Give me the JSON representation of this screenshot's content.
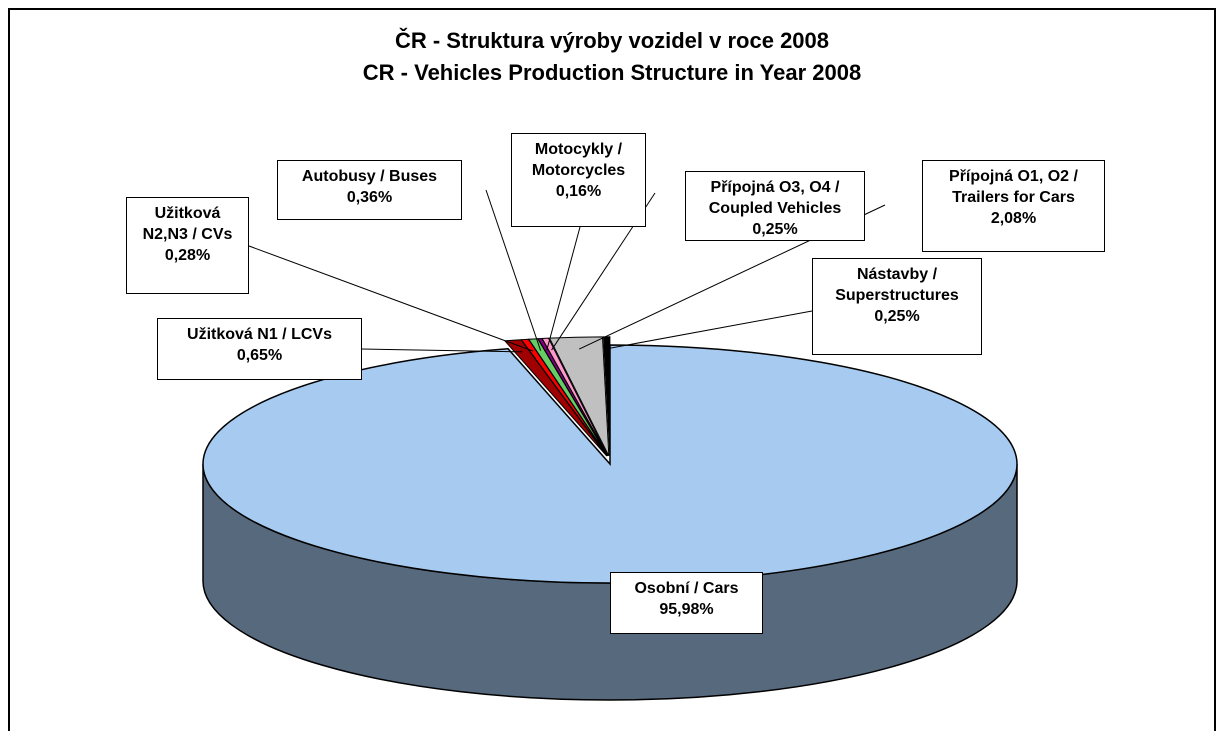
{
  "chart_data": {
    "type": "pie",
    "title": "ČR - Struktura výroby vozidel v roce 2008",
    "subtitle": "CR - Vehicles Production Structure in Year 2008",
    "categories": [
      "Osobní / Cars",
      "Užitková N1 / LCVs",
      "Užitková\nN2,N3 / CVs",
      "Autobusy / Buses",
      "Motocykly /\nMotorcycles",
      "Přípojná O3, O4 /\nCoupled Vehicles",
      "Přípojná O1, O2 /\nTrailers for Cars",
      "Nástavby /\nSuperstructures"
    ],
    "values": [
      95.98,
      0.65,
      0.28,
      0.36,
      0.16,
      0.25,
      2.08,
      0.25
    ],
    "value_labels": [
      "95,98%",
      "0,65%",
      "0,28%",
      "0,36%",
      "0,16%",
      "0,25%",
      "2,08%",
      "0,25%"
    ],
    "colors": [
      "#a6caf0",
      "#a00000",
      "#ff0000",
      "#66cc66",
      "#800080",
      "#ff99cc",
      "#c0c0c0",
      "#000000"
    ]
  }
}
